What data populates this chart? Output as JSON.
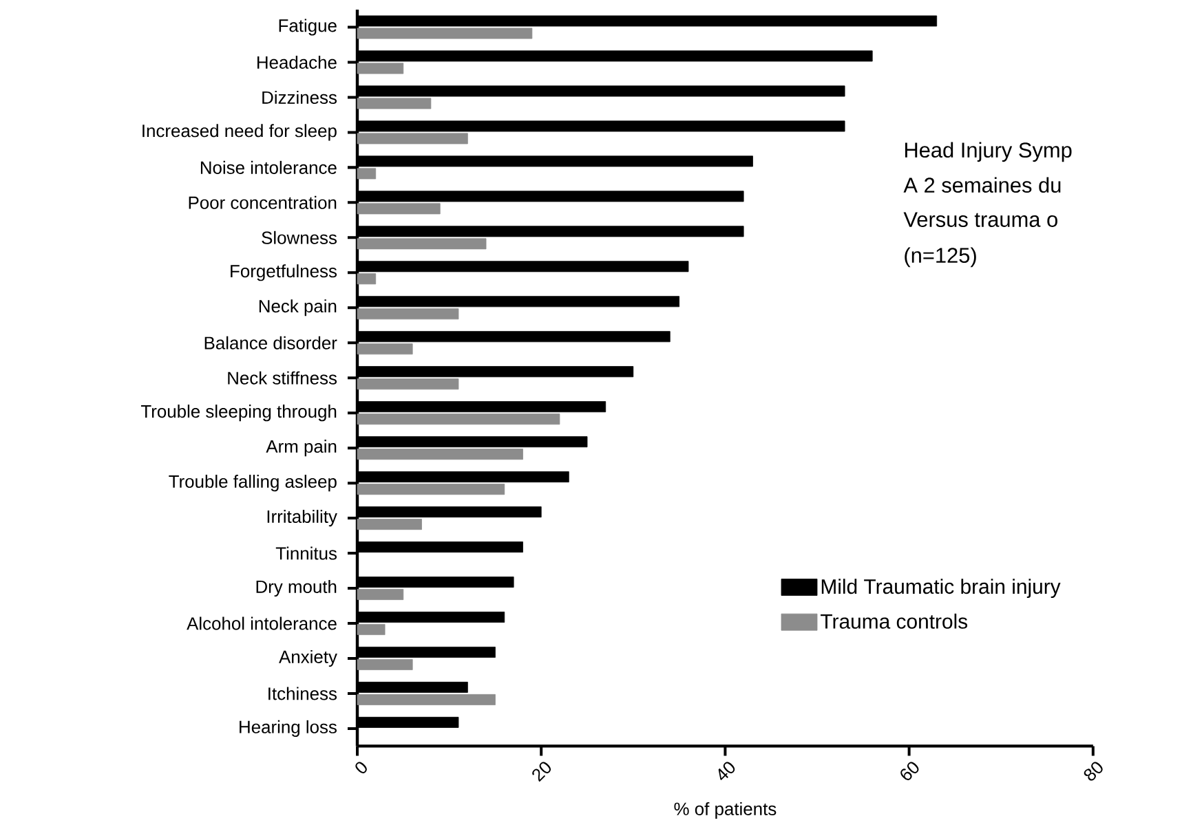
{
  "chart_data": {
    "type": "bar",
    "orientation": "horizontal",
    "categories": [
      "Fatigue",
      "Headache",
      "Dizziness",
      "Increased need for sleep",
      "Noise intolerance",
      "Poor concentration",
      "Slowness",
      "Forgetfulness",
      "Neck pain",
      "Balance disorder",
      "Neck stiffness",
      "Trouble sleeping through",
      "Arm pain",
      "Trouble falling asleep",
      "Irritability",
      "Tinnitus",
      "Dry mouth",
      "Alcohol intolerance",
      "Anxiety",
      "Itchiness",
      "Hearing loss"
    ],
    "series": [
      {
        "name": "Mild Traumatic brain injury",
        "color": "#000000",
        "values": [
          63,
          56,
          53,
          53,
          43,
          42,
          42,
          36,
          35,
          34,
          30,
          27,
          25,
          23,
          20,
          18,
          17,
          16,
          15,
          12,
          11
        ]
      },
      {
        "name": "Trauma controls",
        "color": "#8c8c8c",
        "values": [
          19,
          5,
          8,
          12,
          2,
          9,
          14,
          2,
          11,
          6,
          11,
          22,
          18,
          16,
          7,
          null,
          5,
          3,
          6,
          15,
          null
        ]
      }
    ],
    "xlabel": "% of patients",
    "xlim": [
      0,
      80
    ],
    "xticks": [
      0,
      20,
      40,
      60,
      80
    ],
    "legend": "bottom right",
    "grid": false,
    "annotations": [
      "Head Injury Symp",
      "A 2 semaines du",
      "Versus trauma o",
      "(n=125)"
    ]
  }
}
